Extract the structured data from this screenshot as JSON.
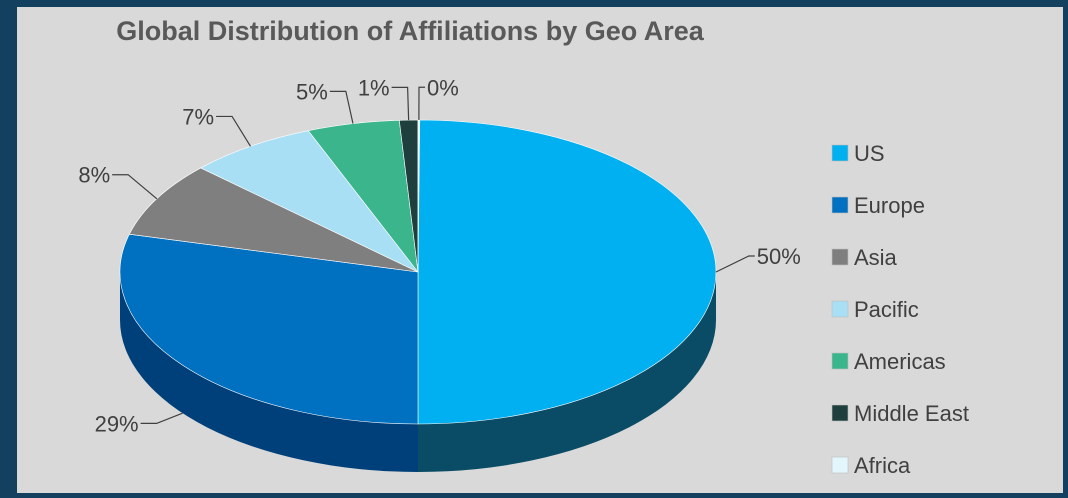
{
  "chart_data": {
    "type": "pie",
    "title": "Global Distribution of Affiliations by Geo Area",
    "categories": [
      "US",
      "Europe",
      "Asia",
      "Pacific",
      "Americas",
      "Middle East",
      "Africa"
    ],
    "values": [
      50,
      29,
      8,
      7,
      5,
      1,
      0
    ],
    "data_labels": [
      "50%",
      "29%",
      "8%",
      "7%",
      "5%",
      "1%",
      "0%"
    ],
    "colors": [
      "#00b0f0",
      "#0070c0",
      "#7f7f7f",
      "#a9dff4",
      "#3bb58c",
      "#1f3f3f",
      "#e2f6fb"
    ],
    "side_colors": [
      "#0a4c66",
      "#00407a",
      "#555555",
      "#6c9aa8",
      "#25735a",
      "#0f2424",
      "#9fb8bf"
    ],
    "legend_position": "right",
    "grid": false,
    "style": "3d"
  }
}
